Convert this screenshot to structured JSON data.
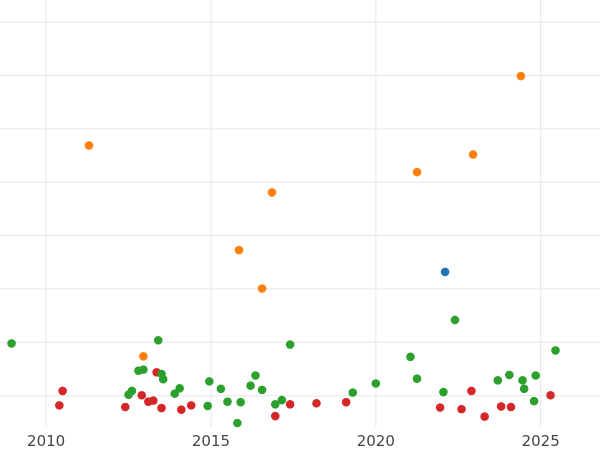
{
  "chart_data": {
    "type": "scatter",
    "x_axis": {
      "ticks": [
        2010,
        2015,
        2020,
        2025
      ],
      "tick_labels": [
        "2010",
        "2015",
        "2020",
        "2025"
      ],
      "range": [
        2008.6,
        2026.8
      ]
    },
    "y_axis": {
      "range": [
        0,
        8
      ],
      "gridlines": [
        0.51,
        1.51,
        2.51,
        3.51,
        4.51,
        5.51,
        6.51,
        7.51
      ],
      "tick_labels_visible": false
    },
    "grid": true,
    "legend": "none",
    "series": [
      {
        "color": "#d62728",
        "points": [
          [
            2010.4,
            0.33
          ],
          [
            2010.5,
            0.6
          ],
          [
            2012.4,
            0.3
          ],
          [
            2012.9,
            0.52
          ],
          [
            2013.1,
            0.4
          ],
          [
            2013.25,
            0.42
          ],
          [
            2013.35,
            0.95
          ],
          [
            2013.5,
            0.28
          ],
          [
            2014.1,
            0.25
          ],
          [
            2014.4,
            0.33
          ],
          [
            2016.95,
            0.13
          ],
          [
            2017.4,
            0.35
          ],
          [
            2018.2,
            0.37
          ],
          [
            2019.1,
            0.39
          ],
          [
            2021.95,
            0.29
          ],
          [
            2022.6,
            0.26
          ],
          [
            2022.9,
            0.6
          ],
          [
            2023.3,
            0.12
          ],
          [
            2023.8,
            0.31
          ],
          [
            2024.1,
            0.3
          ],
          [
            2025.3,
            0.52
          ]
        ]
      },
      {
        "color": "#2ca02c",
        "points": [
          [
            2008.95,
            1.49
          ],
          [
            2012.5,
            0.53
          ],
          [
            2012.6,
            0.6
          ],
          [
            2012.8,
            0.98
          ],
          [
            2012.95,
            1.0
          ],
          [
            2013.4,
            1.55
          ],
          [
            2013.5,
            0.92
          ],
          [
            2013.55,
            0.82
          ],
          [
            2013.9,
            0.55
          ],
          [
            2014.05,
            0.65
          ],
          [
            2014.9,
            0.32
          ],
          [
            2014.95,
            0.78
          ],
          [
            2015.3,
            0.64
          ],
          [
            2015.5,
            0.4
          ],
          [
            2015.8,
            0.0
          ],
          [
            2015.9,
            0.39
          ],
          [
            2016.2,
            0.7
          ],
          [
            2016.35,
            0.89
          ],
          [
            2016.55,
            0.62
          ],
          [
            2016.95,
            0.35
          ],
          [
            2017.15,
            0.43
          ],
          [
            2017.4,
            1.47
          ],
          [
            2019.3,
            0.57
          ],
          [
            2020.0,
            0.74
          ],
          [
            2021.05,
            1.24
          ],
          [
            2021.25,
            0.83
          ],
          [
            2022.05,
            0.58
          ],
          [
            2022.4,
            1.93
          ],
          [
            2023.7,
            0.8
          ],
          [
            2024.05,
            0.9
          ],
          [
            2024.45,
            0.8
          ],
          [
            2024.5,
            0.64
          ],
          [
            2024.8,
            0.41
          ],
          [
            2024.85,
            0.89
          ],
          [
            2025.45,
            1.36
          ]
        ]
      },
      {
        "color": "#ff7f0e",
        "points": [
          [
            2011.3,
            5.2
          ],
          [
            2012.95,
            1.25
          ],
          [
            2015.85,
            3.24
          ],
          [
            2016.55,
            2.52
          ],
          [
            2016.85,
            4.32
          ],
          [
            2021.25,
            4.7
          ],
          [
            2022.95,
            5.03
          ],
          [
            2024.4,
            6.5
          ]
        ]
      },
      {
        "color": "#1f77b4",
        "points": [
          [
            2022.1,
            2.83
          ]
        ]
      }
    ]
  }
}
